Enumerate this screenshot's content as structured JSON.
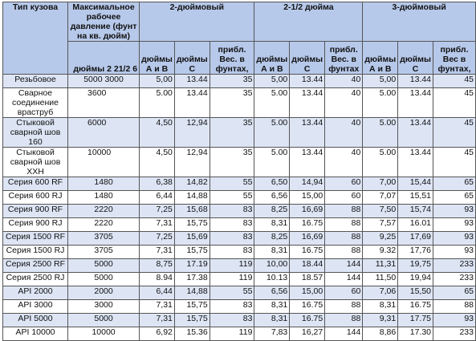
{
  "headers": {
    "type": "Тип кузова",
    "pressure": "Максимальное рабочее давление (фунт на кв. дюйм)",
    "g1": "2-дюймовый",
    "g2": "2-1/2 дюйма",
    "g3": "3-дюймовый",
    "pressure_sub": "дюймы 2 21/2 6",
    "sub_ab": "дюймы А и В",
    "sub_c": "дюймы С",
    "sub_w1": "прибл. Вес. в фунтах,",
    "sub_w2": "прибл. Вес. в фунтах",
    "sub_w3": "прибл. Вес в фунтах,"
  },
  "rows": [
    {
      "type": "Резьбовое",
      "pressure": "5000 3000",
      "g1": [
        "5,00",
        "13.44",
        "35"
      ],
      "g2": [
        "5,00",
        "13.44",
        "40"
      ],
      "g3": [
        "5,00",
        "13.44",
        "45"
      ]
    },
    {
      "type": "Сварное соединение враструб",
      "pressure": "3600",
      "g1": [
        "5.00",
        "13.44",
        "35"
      ],
      "g2": [
        "5.00",
        "13.44",
        "40"
      ],
      "g3": [
        "5.00",
        "13.44",
        "45"
      ]
    },
    {
      "type": "Стыковой сварной шов 160",
      "pressure": "6000",
      "g1": [
        "4,50",
        "12,94",
        "35"
      ],
      "g2": [
        "5.00",
        "13.44",
        "40"
      ],
      "g3": [
        "5.00",
        "13.44",
        "45"
      ]
    },
    {
      "type": "Стыковой сварной шов XXH",
      "pressure": "10000",
      "g1": [
        "4,50",
        "12,94",
        "35"
      ],
      "g2": [
        "5.00",
        "13.44",
        "40"
      ],
      "g3": [
        "5.00",
        "13.44",
        "45"
      ]
    },
    {
      "type": "Серия 600 RF",
      "pressure": "1480",
      "g1": [
        "6,38",
        "14,82",
        "55"
      ],
      "g2": [
        "6,50",
        "14,94",
        "60"
      ],
      "g3": [
        "7,00",
        "15,44",
        "65"
      ]
    },
    {
      "type": "Серия 600 RJ",
      "pressure": "1480",
      "g1": [
        "6,44",
        "14,88",
        "55"
      ],
      "g2": [
        "6,56",
        "15,00",
        "60"
      ],
      "g3": [
        "7,07",
        "15,51",
        "65"
      ]
    },
    {
      "type": "Серия 900 RF",
      "pressure": "2220",
      "g1": [
        "7,25",
        "15,68",
        "83"
      ],
      "g2": [
        "8,25",
        "16,69",
        "88"
      ],
      "g3": [
        "7,50",
        "15,74",
        "93"
      ]
    },
    {
      "type": "Серия 900 RJ",
      "pressure": "2220",
      "g1": [
        "7,31",
        "15,75",
        "83"
      ],
      "g2": [
        "8,31",
        "16.75",
        "88"
      ],
      "g3": [
        "7,57",
        "16.01",
        "93"
      ]
    },
    {
      "type": "Серия 1500 RF",
      "pressure": "3705",
      "g1": [
        "7,25",
        "15,69",
        "83"
      ],
      "g2": [
        "8,25",
        "16,69",
        "88"
      ],
      "g3": [
        "9,25",
        "17,69",
        "93"
      ]
    },
    {
      "type": "Серия 1500 RJ",
      "pressure": "3705",
      "g1": [
        "7,31",
        "15,75",
        "83"
      ],
      "g2": [
        "8,31",
        "16.75",
        "88"
      ],
      "g3": [
        "9.32",
        "17,76",
        "93"
      ]
    },
    {
      "type": "Серия 2500 RF",
      "pressure": "5000",
      "g1": [
        "8,75",
        "17.19",
        "119"
      ],
      "g2": [
        "10,00",
        "18.44",
        "144"
      ],
      "g3": [
        "11,31",
        "19,75",
        "233"
      ]
    },
    {
      "type": "Серия 2500 RJ",
      "pressure": "5000",
      "g1": [
        "8.94",
        "17.38",
        "119"
      ],
      "g2": [
        "10.13",
        "18.57",
        "144"
      ],
      "g3": [
        "11,50",
        "19,94",
        "233"
      ]
    },
    {
      "type": "API 2000",
      "pressure": "2000",
      "g1": [
        "6,44",
        "14,88",
        "55"
      ],
      "g2": [
        "6,56",
        "15,00",
        "60"
      ],
      "g3": [
        "7,06",
        "15,50",
        "65"
      ]
    },
    {
      "type": "API 3000",
      "pressure": "3000",
      "g1": [
        "7,31",
        "15,75",
        "83"
      ],
      "g2": [
        "8,31",
        "16.75",
        "88"
      ],
      "g3": [
        "8,31",
        "16.75",
        "88"
      ]
    },
    {
      "type": "API 5000",
      "pressure": "5000",
      "g1": [
        "7,31",
        "15,75",
        "83"
      ],
      "g2": [
        "8,31",
        "16.75",
        "88"
      ],
      "g3": [
        "9,31",
        "17.75",
        "93"
      ]
    },
    {
      "type": "API 10000",
      "pressure": "10000",
      "g1": [
        "6,92",
        "15.36",
        "119"
      ],
      "g2": [
        "7,83",
        "16,27",
        "144"
      ],
      "g3": [
        "8,86",
        "17.30",
        "233"
      ]
    }
  ]
}
